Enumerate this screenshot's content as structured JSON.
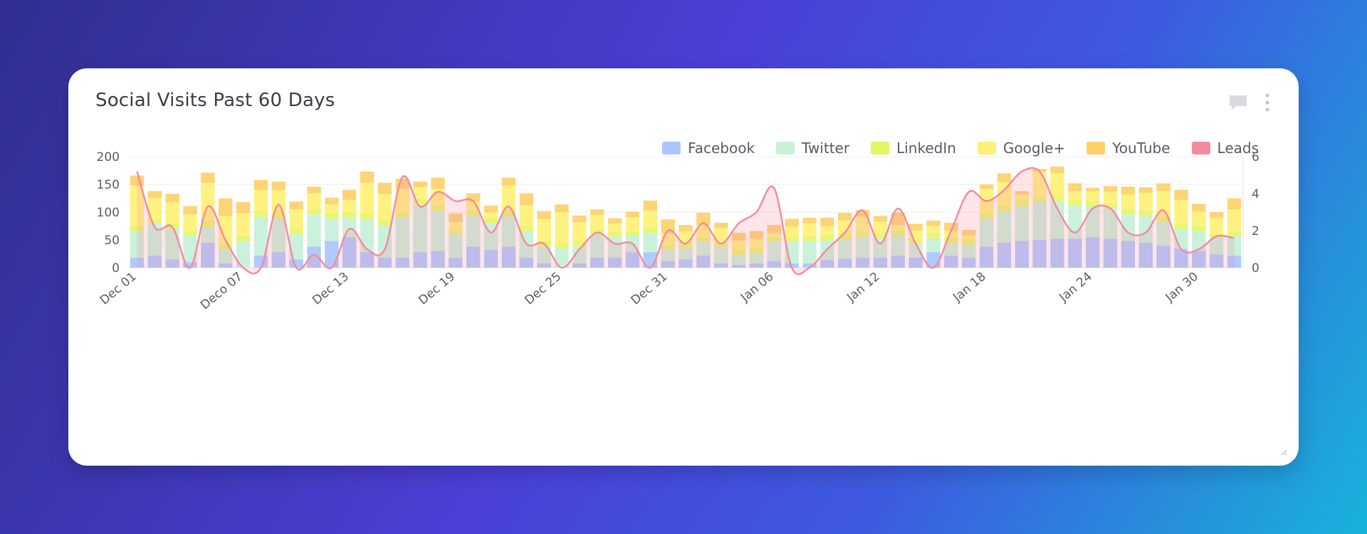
{
  "card": {
    "title": "Social Visits Past 60 Days",
    "actions": {
      "comment_icon": "comment-icon",
      "menu_icon": "kebab-menu-icon"
    }
  },
  "chart_data": {
    "type": "bar",
    "title": "Social Visits Past 60 Days",
    "stacked": true,
    "dual_axis": true,
    "ylim_left": [
      0,
      200
    ],
    "ylim_right": [
      0,
      6
    ],
    "yticks_left": [
      "0",
      "50",
      "100",
      "150",
      "200"
    ],
    "yticks_right": [
      "0",
      "2",
      "4",
      "6"
    ],
    "legend_position": "top-right",
    "grid": true,
    "x_labels": [
      {
        "index": 0,
        "label": "Dec 01"
      },
      {
        "index": 6,
        "label": "Deco 07"
      },
      {
        "index": 12,
        "label": "Dec 13"
      },
      {
        "index": 18,
        "label": "Dec 19"
      },
      {
        "index": 24,
        "label": "Dec 25"
      },
      {
        "index": 30,
        "label": "Dec 31"
      },
      {
        "index": 36,
        "label": "Jan 06"
      },
      {
        "index": 42,
        "label": "Jan 12"
      },
      {
        "index": 48,
        "label": "Jan 18"
      },
      {
        "index": 54,
        "label": "Jan 24"
      },
      {
        "index": 60,
        "label": "Jan 30"
      }
    ],
    "series": [
      {
        "name": "Facebook",
        "color": "#a9c6ff",
        "axis": "left",
        "values": [
          18,
          22,
          15,
          10,
          45,
          8,
          0,
          22,
          28,
          15,
          38,
          48,
          55,
          28,
          18,
          18,
          28,
          30,
          18,
          38,
          32,
          38,
          18,
          8,
          0,
          8,
          18,
          18,
          28,
          28,
          12,
          15,
          22,
          8,
          5,
          8,
          12,
          8,
          8,
          14,
          16,
          18,
          18,
          22,
          18,
          28,
          22,
          18,
          38,
          45,
          48,
          50,
          52,
          52,
          55,
          52,
          48,
          45,
          40,
          34,
          30,
          24,
          22
        ]
      },
      {
        "name": "Twitter",
        "color": "#c6f0d8",
        "axis": "left",
        "values": [
          48,
          58,
          55,
          48,
          28,
          25,
          48,
          68,
          60,
          45,
          58,
          40,
          35,
          58,
          58,
          72,
          85,
          72,
          42,
          55,
          48,
          55,
          48,
          30,
          35,
          30,
          42,
          38,
          30,
          35,
          20,
          20,
          25,
          28,
          18,
          18,
          35,
          40,
          40,
          35,
          35,
          38,
          35,
          35,
          25,
          25,
          22,
          22,
          50,
          55,
          62,
          68,
          68,
          60,
          55,
          55,
          48,
          48,
          42,
          36,
          36,
          30,
          35
        ]
      },
      {
        "name": "LinkedIn",
        "color": "#e6f566",
        "axis": "left",
        "values": [
          10,
          8,
          10,
          8,
          12,
          10,
          10,
          12,
          10,
          10,
          10,
          10,
          10,
          12,
          12,
          10,
          10,
          10,
          10,
          10,
          10,
          10,
          10,
          10,
          10,
          10,
          10,
          8,
          8,
          10,
          10,
          10,
          8,
          10,
          10,
          10,
          8,
          8,
          10,
          10,
          10,
          10,
          10,
          10,
          10,
          10,
          10,
          10,
          10,
          12,
          12,
          10,
          10,
          10,
          10,
          10,
          10,
          10,
          10,
          10,
          10,
          8,
          8
        ]
      },
      {
        "name": "Google+",
        "color": "#fff176",
        "axis": "left",
        "values": [
          72,
          38,
          38,
          30,
          68,
          50,
          40,
          38,
          42,
          35,
          28,
          16,
          22,
          55,
          45,
          42,
          22,
          30,
          12,
          16,
          10,
          45,
          36,
          40,
          55,
          34,
          25,
          15,
          25,
          30,
          20,
          20,
          22,
          25,
          16,
          16,
          7,
          18,
          22,
          16,
          24,
          26,
          20,
          10,
          14,
          12,
          12,
          8,
          44,
          42,
          10,
          45,
          40,
          16,
          18,
          20,
          26,
          32,
          46,
          42,
          25,
          28,
          40
        ]
      },
      {
        "name": "YouTube",
        "color": "#fdd06a",
        "axis": "left",
        "values": [
          18,
          12,
          15,
          15,
          18,
          32,
          20,
          18,
          15,
          14,
          12,
          12,
          18,
          20,
          20,
          18,
          10,
          20,
          16,
          15,
          12,
          14,
          22,
          14,
          14,
          12,
          10,
          10,
          10,
          18,
          25,
          12,
          22,
          10,
          14,
          14,
          15,
          14,
          10,
          15,
          14,
          12,
          10,
          22,
          12,
          10,
          15,
          10,
          8,
          16,
          6,
          5,
          12,
          14,
          6,
          10,
          14,
          10,
          14,
          18,
          14,
          10,
          20
        ]
      },
      {
        "name": "Leads",
        "color": "#f48aa0",
        "axis": "right",
        "type": "line",
        "values": [
          5.2,
          2.2,
          2.2,
          0,
          3.3,
          1.5,
          0,
          0,
          3.4,
          0,
          0.7,
          0,
          2.1,
          1.0,
          1.0,
          4.9,
          3.3,
          4.1,
          3.6,
          3.6,
          1.9,
          3.3,
          1.3,
          1.3,
          0,
          1.0,
          1.9,
          1.3,
          1.3,
          0,
          2.0,
          1.3,
          2.4,
          1.3,
          2.4,
          3.0,
          4.3,
          0,
          0,
          1.0,
          1.9,
          3.1,
          1.3,
          3.2,
          1.3,
          0,
          2.0,
          4.1,
          3.6,
          4.2,
          5.2,
          5.2,
          3.2,
          1.9,
          3.2,
          3.2,
          1.9,
          1.9,
          3.1,
          1.0,
          1.0,
          1.7,
          1.6
        ]
      }
    ]
  }
}
